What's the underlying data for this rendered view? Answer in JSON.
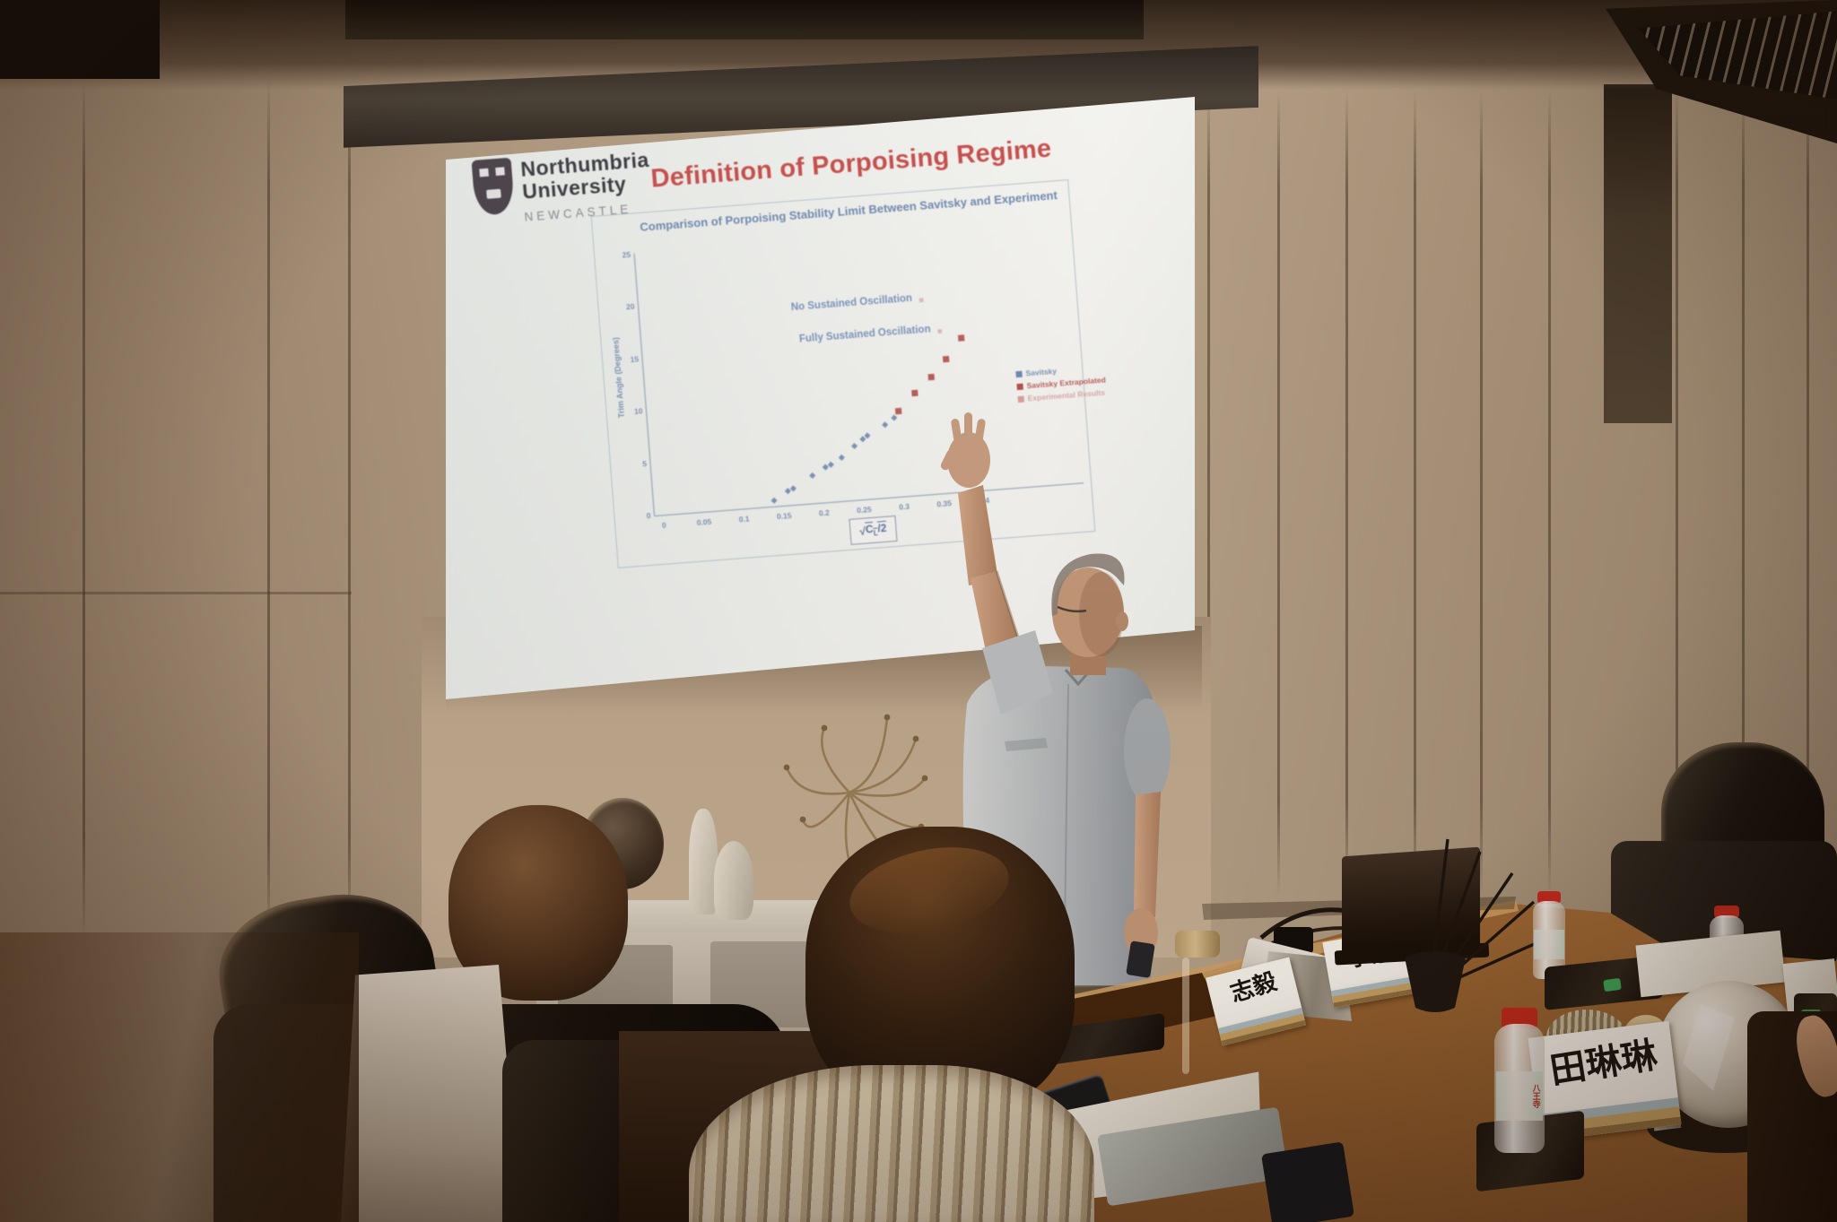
{
  "scene": {
    "setting": "Conference room photo: a presenter points at a projected slide while three seated people watch from a wooden meeting table",
    "colors": {
      "slide_title_red": "#d44f4f",
      "chart_text_blue": "#7492c0",
      "room_wall_tan": "#b3a089",
      "table_wood": "#9a6234"
    }
  },
  "slide": {
    "logo": {
      "line1": "Northumbria",
      "line2": "University",
      "line3": "NEWCASTLE"
    },
    "title": "Definition of Porpoising Regime"
  },
  "chart_data": {
    "type": "scatter",
    "title": "Comparison of Porpoising Stability Limit Between Savitsky and Experiment",
    "xlabel": "√(CL/2)",
    "xlabel_parts": {
      "radical": "√",
      "base": "C",
      "sub": "L",
      "post": "/2"
    },
    "ylabel": "Trim Angle (Degrees)",
    "xlim": [
      0,
      0.4
    ],
    "ylim": [
      0,
      25
    ],
    "x_ticks": [
      0,
      0.05,
      0.1,
      0.15,
      0.2,
      0.25,
      0.3,
      0.35,
      0.4
    ],
    "y_ticks": [
      0,
      5,
      10,
      15,
      20,
      25
    ],
    "grid": false,
    "legend_position": "right-middle",
    "series": [
      {
        "name": "Savitsky",
        "color": "#6f8fc0",
        "marker": "diamond",
        "points": [
          [
            0.139,
            0.6
          ],
          [
            0.157,
            1.4
          ],
          [
            0.164,
            1.6
          ],
          [
            0.189,
            2.7
          ],
          [
            0.206,
            3.4
          ],
          [
            0.213,
            3.6
          ],
          [
            0.227,
            4.2
          ],
          [
            0.244,
            5.2
          ],
          [
            0.255,
            5.8
          ],
          [
            0.261,
            6.1
          ],
          [
            0.284,
            7.0
          ],
          [
            0.296,
            7.6
          ]
        ]
      },
      {
        "name": "Savitsky Extrapolated",
        "color": "#c0504d",
        "marker": "square",
        "points": [
          [
            0.302,
            8.2
          ],
          [
            0.324,
            9.8
          ],
          [
            0.346,
            11.2
          ],
          [
            0.366,
            12.8
          ],
          [
            0.387,
            14.7
          ]
        ]
      },
      {
        "name": "Experimental Results",
        "color": "#e2a6a6",
        "marker": "square",
        "points": [
          [
            0.341,
            18.6
          ],
          [
            0.361,
            15.5
          ]
        ]
      }
    ],
    "annotations": [
      {
        "text": "No Sustained Oscillation",
        "x": 0.341,
        "y": 18.6
      },
      {
        "text": "Fully Sustained Oscillation",
        "x": 0.361,
        "y": 15.5
      }
    ]
  },
  "table": {
    "name_cards": [
      {
        "text": "志毅"
      },
      {
        "text": "李慧"
      },
      {
        "text": "田琳琳"
      }
    ],
    "water_bottle_brand": "八王寺"
  }
}
